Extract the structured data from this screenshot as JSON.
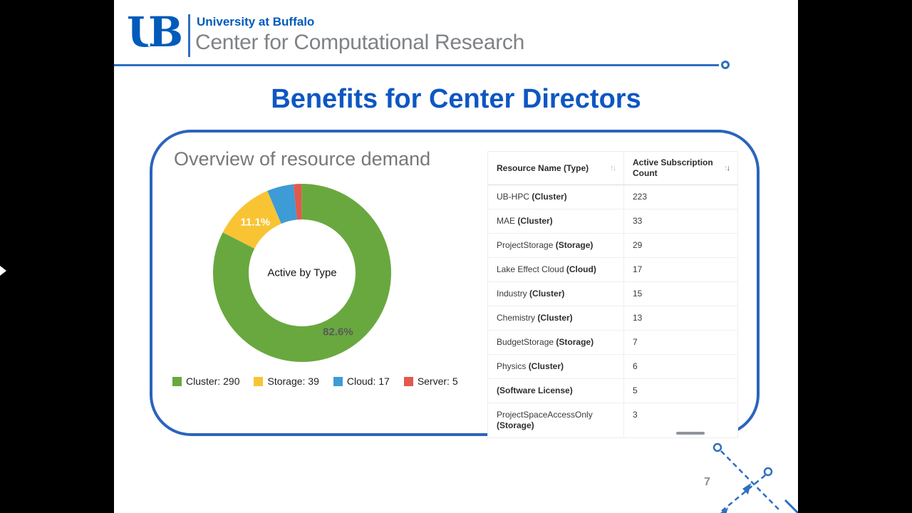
{
  "header": {
    "logo_u": "U",
    "logo_b": "B",
    "university": "University at Buffalo",
    "center_name": "Center for Computational Research"
  },
  "slide": {
    "title": "Benefits for Center Directors",
    "page_number": "7"
  },
  "panel_heading": "Overview of resource demand",
  "chart_data": {
    "type": "pie",
    "subtype": "donut",
    "center_label": "Active by Type",
    "series": [
      {
        "label": "Cluster",
        "value": 290,
        "color": "#69a83f",
        "pct_label": "82.6%",
        "pct_color": "#58595b"
      },
      {
        "label": "Storage",
        "value": 39,
        "color": "#f8c434",
        "pct_label": "11.1%",
        "pct_color": "#ffffff"
      },
      {
        "label": "Cloud",
        "value": 17,
        "color": "#3d9bd5",
        "pct_label": "",
        "pct_color": ""
      },
      {
        "label": "Server",
        "value": 5,
        "color": "#e2594d",
        "pct_label": "",
        "pct_color": ""
      }
    ],
    "legend": [
      "Cluster: 290",
      "Storage: 39",
      "Cloud: 17",
      "Server: 5"
    ],
    "legend_position": "bottom"
  },
  "table": {
    "columns": [
      {
        "label": "Resource Name (Type)",
        "sort": "none"
      },
      {
        "label": "Active Subscription Count",
        "sort": "desc"
      }
    ],
    "rows": [
      {
        "name": "UB-HPC",
        "type": "(Cluster)",
        "count": "223"
      },
      {
        "name": "MAE",
        "type": "(Cluster)",
        "count": "33"
      },
      {
        "name": "ProjectStorage",
        "type": "(Storage)",
        "count": "29"
      },
      {
        "name": "Lake Effect Cloud",
        "type": "(Cloud)",
        "count": "17"
      },
      {
        "name": "Industry",
        "type": "(Cluster)",
        "count": "15"
      },
      {
        "name": "Chemistry",
        "type": "(Cluster)",
        "count": "13"
      },
      {
        "name": "BudgetStorage",
        "type": "(Storage)",
        "count": "7"
      },
      {
        "name": "Physics",
        "type": "(Cluster)",
        "count": "6"
      },
      {
        "name": "",
        "type": "(Software License)",
        "count": "5"
      },
      {
        "name": "ProjectSpaceAccessOnly",
        "type": "(Storage)",
        "count": "3"
      }
    ]
  },
  "icons": {
    "arrow_up": "↑",
    "arrow_down": "↓"
  },
  "colors": {
    "ub_blue": "#005bbb",
    "accent_blue": "#0d57c2",
    "panel_blue": "#2b64bc",
    "rule_blue": "#2e6fc0",
    "gray_text": "#7f8285"
  }
}
